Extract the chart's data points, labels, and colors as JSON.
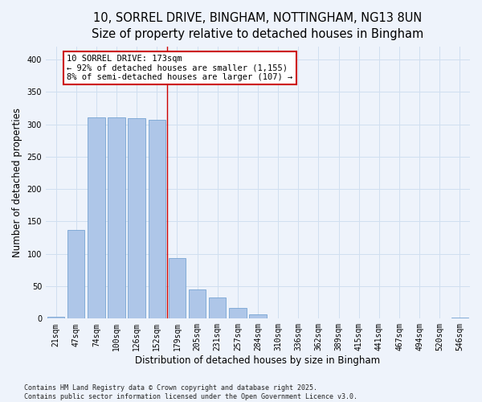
{
  "title_line1": "10, SORREL DRIVE, BINGHAM, NOTTINGHAM, NG13 8UN",
  "title_line2": "Size of property relative to detached houses in Bingham",
  "xlabel": "Distribution of detached houses by size in Bingham",
  "ylabel": "Number of detached properties",
  "categories": [
    "21sqm",
    "47sqm",
    "74sqm",
    "100sqm",
    "126sqm",
    "152sqm",
    "179sqm",
    "205sqm",
    "231sqm",
    "257sqm",
    "284sqm",
    "310sqm",
    "336sqm",
    "362sqm",
    "389sqm",
    "415sqm",
    "441sqm",
    "467sqm",
    "494sqm",
    "520sqm",
    "546sqm"
  ],
  "values": [
    3,
    137,
    311,
    311,
    309,
    307,
    93,
    45,
    33,
    16,
    6,
    0,
    0,
    0,
    0,
    0,
    0,
    0,
    0,
    0,
    2
  ],
  "bar_color": "#aec6e8",
  "bar_edge_color": "#6699cc",
  "grid_color": "#d0dff0",
  "background_color": "#eef3fb",
  "vline_color": "#cc0000",
  "annotation_text_line1": "10 SORREL DRIVE: 173sqm",
  "annotation_text_line2": "← 92% of detached houses are smaller (1,155)",
  "annotation_text_line3": "8% of semi-detached houses are larger (107) →",
  "ylim": [
    0,
    420
  ],
  "yticks": [
    0,
    50,
    100,
    150,
    200,
    250,
    300,
    350,
    400
  ],
  "title_fontsize": 10.5,
  "label_fontsize": 8.5,
  "tick_fontsize": 7,
  "annot_fontsize": 7.5,
  "footnote_fontsize": 6,
  "footnote": "Contains HM Land Registry data © Crown copyright and database right 2025.\nContains public sector information licensed under the Open Government Licence v3.0."
}
